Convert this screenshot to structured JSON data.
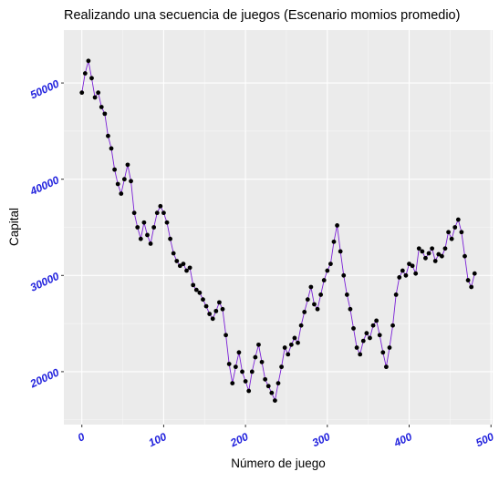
{
  "chart_data": {
    "type": "line",
    "title": "Realizando una secuencia de juegos (Escenario momios promedio)",
    "xlabel": "Número de juego",
    "ylabel": "Capital",
    "xlim": [
      -22,
      502
    ],
    "ylim": [
      14500,
      55500
    ],
    "x_ticks": [
      0,
      100,
      200,
      300,
      400,
      500
    ],
    "y_ticks": [
      20000,
      30000,
      40000,
      50000
    ],
    "x_tick_labels": [
      "0",
      "100",
      "200",
      "300",
      "400",
      "500"
    ],
    "y_tick_labels": [
      "20000",
      "30000",
      "40000",
      "50000"
    ],
    "grid": true,
    "colors": {
      "panel": "#ebebeb",
      "grid_major": "#ffffff",
      "line": "#7a1fd6",
      "points": "#000000",
      "tick_labels": "#2222dd"
    },
    "series": [
      {
        "x": [
          0,
          4,
          8,
          12,
          16,
          20,
          24,
          28,
          32,
          36,
          40,
          44,
          48,
          52,
          56,
          60,
          64,
          68,
          72,
          76,
          80,
          84,
          88,
          92,
          96,
          100,
          104,
          108,
          112,
          116,
          120,
          124,
          128,
          132,
          136,
          140,
          144,
          148,
          152,
          156,
          160,
          164,
          168,
          172,
          176,
          180,
          184,
          188,
          192,
          196,
          200,
          204,
          208,
          212,
          216,
          220,
          224,
          228,
          232,
          236,
          240,
          244,
          248,
          252,
          256,
          260,
          264,
          268,
          272,
          276,
          280,
          284,
          288,
          292,
          296,
          300,
          304,
          308,
          312,
          316,
          320,
          324,
          328,
          332,
          336,
          340,
          344,
          348,
          352,
          356,
          360,
          364,
          368,
          372,
          376,
          380,
          384,
          388,
          392,
          396,
          400,
          404,
          408,
          412,
          416,
          420,
          424,
          428,
          432,
          436,
          440,
          444,
          448,
          452,
          456,
          460,
          464,
          468,
          472,
          476,
          480
        ],
        "values": [
          49000,
          51000,
          52300,
          50500,
          48500,
          49000,
          47500,
          46800,
          44500,
          43200,
          41000,
          39500,
          38500,
          40000,
          41500,
          39800,
          36500,
          35000,
          33800,
          35500,
          34200,
          33300,
          35000,
          36500,
          37200,
          36500,
          35500,
          33800,
          32300,
          31500,
          31000,
          31200,
          30500,
          30800,
          29000,
          28500,
          28200,
          27500,
          26800,
          26000,
          25500,
          26300,
          27200,
          26500,
          23800,
          20800,
          18800,
          20500,
          22000,
          20000,
          19000,
          18000,
          20000,
          21500,
          22800,
          21000,
          19200,
          18500,
          17800,
          17000,
          18800,
          20500,
          22500,
          21800,
          22800,
          23500,
          23000,
          24800,
          26200,
          27500,
          28800,
          27000,
          26500,
          28000,
          29500,
          30500,
          31200,
          33500,
          35200,
          32500,
          30000,
          28000,
          26500,
          24500,
          22500,
          21800,
          23200,
          24000,
          23500,
          24800,
          25300,
          23800,
          22000,
          20500,
          22500,
          24800,
          28000,
          29800,
          30500,
          30000,
          31200,
          31000,
          30200,
          32800,
          32500,
          31800,
          32300,
          32800,
          31500,
          32200,
          32000,
          32800,
          34500,
          33800,
          35000,
          35800,
          34500,
          32000,
          29500,
          28800,
          30200
        ]
      }
    ]
  }
}
